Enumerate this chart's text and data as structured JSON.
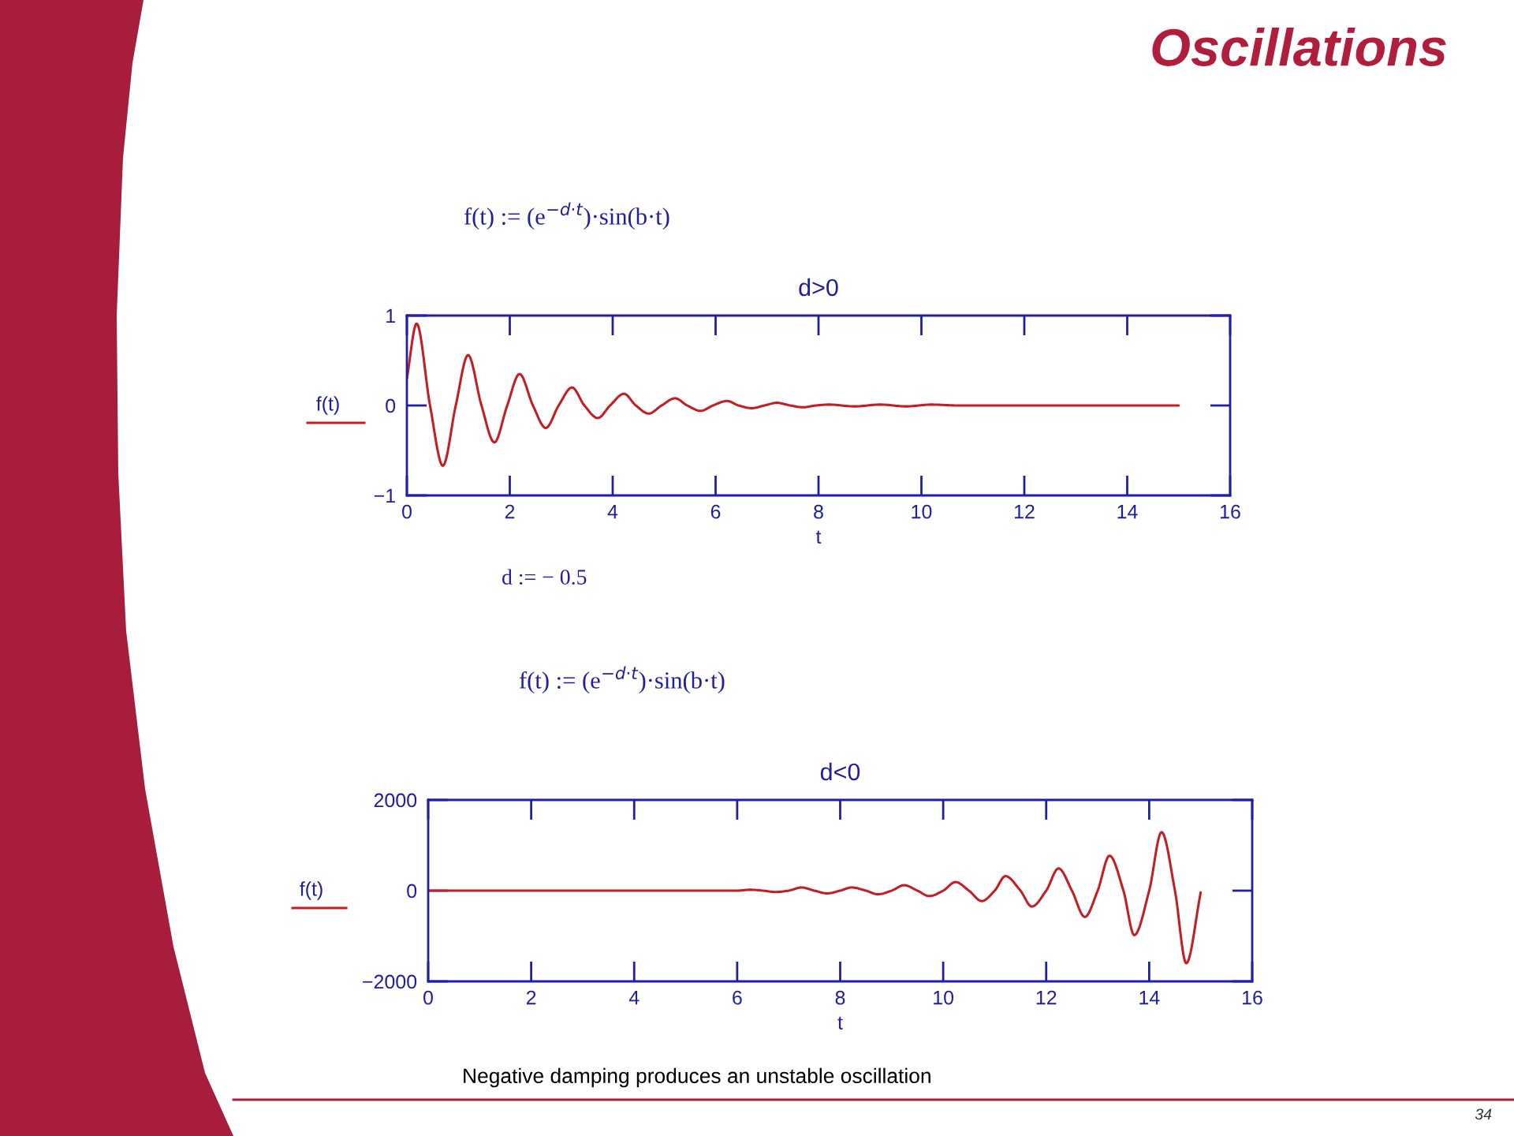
{
  "chart_data": [
    {
      "type": "line",
      "title": "d>0",
      "xlabel": "t",
      "legend": "left",
      "annotations": [
        "Oscillations",
        "f(t) := (e$^{−d·t}$)·sin(b·t)"
      ],
      "xlim": [
        0,
        16
      ],
      "xticks": [
        0,
        2,
        4,
        6,
        8,
        10,
        12,
        14,
        16
      ],
      "ylim": [
        -1,
        1
      ],
      "yticks": [
        {
          "value": -1,
          "label": "−1"
        },
        0,
        1
      ],
      "series": [
        {
          "name": "f(t)",
          "color": "#c41e24",
          "x": [
            0,
            0.19,
            0.45,
            0.7,
            0.95,
            1.19,
            1.45,
            1.7,
            1.95,
            2.19,
            2.45,
            2.7,
            2.95,
            3.21,
            3.45,
            3.71,
            3.95,
            4.22,
            4.45,
            4.7,
            4.95,
            5.21,
            5.45,
            5.71,
            5.95,
            6.22,
            6.45,
            6.7,
            6.95,
            7.19,
            7.45,
            7.7,
            7.95,
            8.2,
            8.7,
            9.2,
            9.7,
            10.2,
            10.7,
            11.5,
            12.5,
            13.5,
            14.5,
            15
          ],
          "values": [
            0.3,
            0.91,
            0,
            -0.67,
            0,
            0.56,
            0,
            -0.41,
            0,
            0.35,
            0,
            -0.25,
            0,
            0.2,
            0,
            -0.14,
            0,
            0.13,
            0,
            -0.09,
            0,
            0.08,
            0,
            -0.06,
            0,
            0.05,
            0,
            -0.03,
            0,
            0.03,
            0,
            -0.02,
            0,
            0.01,
            -0.01,
            0.01,
            -0.01,
            0.01,
            0,
            0,
            0,
            0,
            0,
            0
          ]
        }
      ]
    },
    {
      "type": "line",
      "title": "d<0",
      "xlabel": "t",
      "legend": "left",
      "annotations": [
        "d := − 0.5",
        "f(t) := (e$^{−d·t}$)·sin(b·t)",
        "Negative damping produces an unstable oscillation",
        "34"
      ],
      "xlim": [
        0,
        16
      ],
      "xticks": [
        0,
        2,
        4,
        6,
        8,
        10,
        12,
        14,
        16
      ],
      "ylim": [
        -2000,
        2000
      ],
      "yticks": [
        {
          "value": -2000,
          "label": "−2000"
        },
        0,
        2000
      ],
      "series": [
        {
          "name": "f(t)",
          "color": "#c41e24",
          "x": [
            0,
            1,
            2,
            3,
            4,
            5,
            6,
            6.25,
            6.5,
            6.75,
            7,
            7.25,
            7.5,
            7.75,
            8,
            8.22,
            8.5,
            8.73,
            9,
            9.24,
            9.5,
            9.73,
            10,
            10.24,
            10.5,
            10.75,
            11,
            11.21,
            11.5,
            11.72,
            12,
            12.24,
            12.5,
            12.75,
            13,
            13.23,
            13.5,
            13.71,
            14,
            14.24,
            14.5,
            14.72,
            15
          ],
          "values": [
            0,
            0,
            0,
            0,
            0,
            0,
            0,
            20,
            0,
            -30,
            0,
            70,
            0,
            -60,
            0,
            70,
            0,
            -80,
            0,
            120,
            0,
            -120,
            0,
            190,
            0,
            -230,
            0,
            320,
            0,
            -350,
            0,
            490,
            0,
            -580,
            0,
            770,
            0,
            -980,
            0,
            1290,
            0,
            -1600,
            -40
          ]
        }
      ]
    }
  ]
}
